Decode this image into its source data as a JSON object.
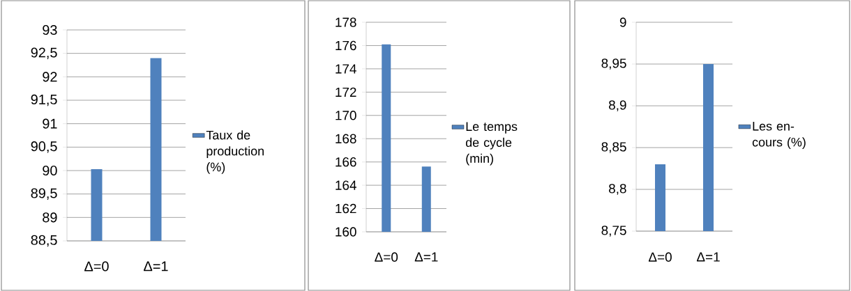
{
  "chart_data": [
    {
      "type": "bar",
      "categories": [
        "Δ=0",
        "Δ=1"
      ],
      "series": [
        {
          "name": "Taux de production (%)",
          "color": "#4f81bd",
          "values": [
            90.03,
            92.4
          ]
        }
      ],
      "ylim": [
        88.5,
        93
      ],
      "yticks": [
        {
          "value": 88.5,
          "label": "88,5"
        },
        89,
        {
          "value": 89.5,
          "label": "89,5"
        },
        90,
        {
          "value": 90.5,
          "label": "90,5"
        },
        91,
        {
          "value": 91.5,
          "label": "91,5"
        },
        92,
        {
          "value": 92.5,
          "label": "92,5"
        },
        93
      ],
      "grid": "y",
      "legend": "right"
    },
    {
      "type": "bar",
      "categories": [
        "Δ=0",
        "Δ=1"
      ],
      "series": [
        {
          "name": "Le temps de cycle (min)",
          "color": "#4f81bd",
          "values": [
            176.1,
            165.6
          ]
        }
      ],
      "ylim": [
        160,
        178
      ],
      "yticks": [
        160,
        162,
        164,
        166,
        168,
        170,
        172,
        174,
        176,
        178
      ],
      "grid": "y",
      "legend": "right"
    },
    {
      "type": "bar",
      "categories": [
        "Δ=0",
        "Δ=1"
      ],
      "series": [
        {
          "name": "Les en-cours (%)",
          "color": "#4f81bd",
          "values": [
            8.83,
            8.95
          ]
        }
      ],
      "ylim": [
        8.75,
        9
      ],
      "yticks": [
        {
          "value": 8.75,
          "label": "8,75"
        },
        {
          "value": 8.8,
          "label": "8,8"
        },
        {
          "value": 8.85,
          "label": "8,85"
        },
        {
          "value": 8.9,
          "label": "8,9"
        },
        {
          "value": 8.95,
          "label": "8,95"
        },
        9
      ],
      "grid": "y",
      "legend": "right"
    }
  ]
}
